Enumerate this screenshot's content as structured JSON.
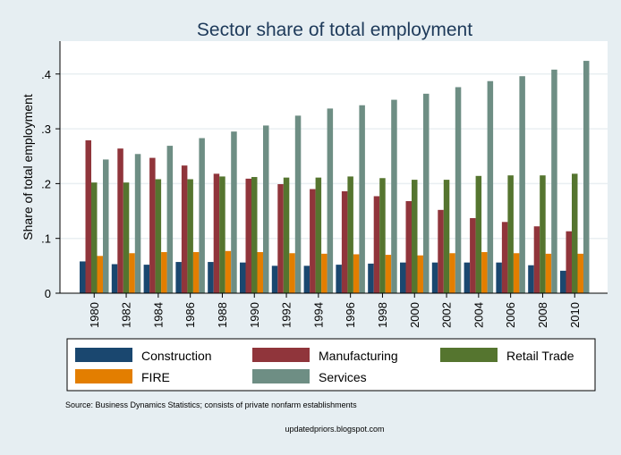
{
  "chart_data": {
    "type": "bar",
    "title": "Sector share of total employment",
    "xlabel": "",
    "ylabel": "Share of total employment",
    "ylim": [
      0,
      0.46
    ],
    "yticks": [
      {
        "value": 0,
        "label": "0"
      },
      {
        "value": 0.1,
        "label": ".1"
      },
      {
        "value": 0.2,
        "label": ".2"
      },
      {
        "value": 0.3,
        "label": ".3"
      },
      {
        "value": 0.4,
        "label": ".4"
      }
    ],
    "grid": true,
    "categories": [
      "1980",
      "1982",
      "1984",
      "1986",
      "1988",
      "1990",
      "1992",
      "1994",
      "1996",
      "1998",
      "2000",
      "2002",
      "2004",
      "2006",
      "2008",
      "2010"
    ],
    "series": [
      {
        "name": "Construction",
        "color": "#1a476f",
        "values": [
          0.058,
          0.053,
          0.052,
          0.057,
          0.057,
          0.056,
          0.05,
          0.05,
          0.052,
          0.054,
          0.056,
          0.056,
          0.056,
          0.056,
          0.051,
          0.041
        ]
      },
      {
        "name": "Manufacturing",
        "color": "#90353b",
        "values": [
          0.279,
          0.264,
          0.247,
          0.233,
          0.218,
          0.209,
          0.199,
          0.19,
          0.186,
          0.177,
          0.168,
          0.152,
          0.137,
          0.13,
          0.122,
          0.113
        ]
      },
      {
        "name": "Retail Trade",
        "color": "#55752f",
        "values": [
          0.202,
          0.202,
          0.208,
          0.208,
          0.213,
          0.212,
          0.211,
          0.211,
          0.213,
          0.21,
          0.207,
          0.207,
          0.214,
          0.215,
          0.215,
          0.218
        ]
      },
      {
        "name": "FIRE",
        "color": "#e37e00",
        "values": [
          0.068,
          0.073,
          0.075,
          0.075,
          0.077,
          0.075,
          0.073,
          0.072,
          0.071,
          0.07,
          0.069,
          0.073,
          0.075,
          0.073,
          0.072,
          0.072
        ]
      },
      {
        "name": "Services",
        "color": "#6e8e84",
        "values": [
          0.244,
          0.254,
          0.269,
          0.283,
          0.295,
          0.306,
          0.324,
          0.337,
          0.343,
          0.353,
          0.364,
          0.376,
          0.387,
          0.396,
          0.408,
          0.424
        ]
      }
    ],
    "legend_position": "bottom",
    "note": "Source: Business Dynamics Statistics; consists of private nonfarm establishments",
    "caption": "updatedpriors.blogspot.com"
  }
}
